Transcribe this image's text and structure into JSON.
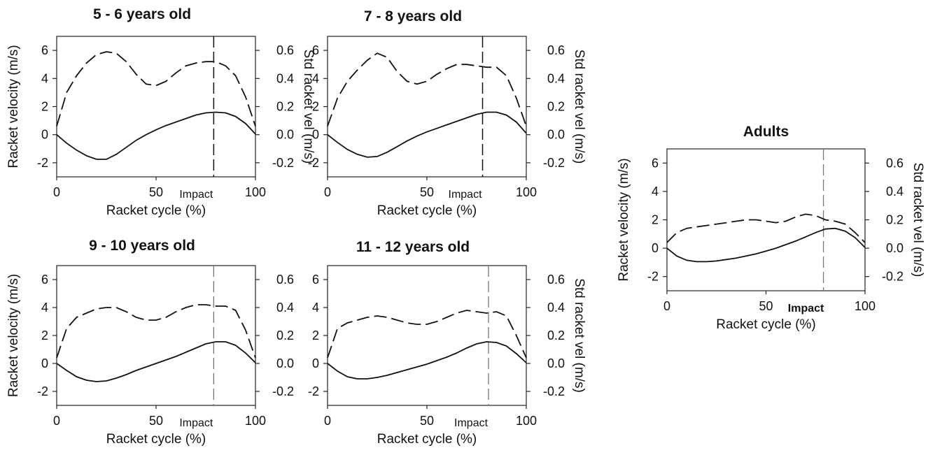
{
  "chart_data": [
    {
      "type": "line",
      "title": "5 - 6 years old",
      "xlabel": "Racket cycle (%)",
      "ylabel": "Racket velocity (m/s)",
      "ylabel_right": "Std racket vel (m/s)",
      "xlim": [
        0,
        100
      ],
      "ylim": [
        -3,
        7
      ],
      "ylim_right": [
        -0.3,
        0.7
      ],
      "x_ticks": [
        "0",
        "50",
        "100"
      ],
      "y_ticks": [
        "-2",
        "0",
        "2",
        "4",
        "6"
      ],
      "y_ticks_right": [
        "-0.2",
        "0.0",
        "0.2",
        "0.4",
        "0.6"
      ],
      "impact_label": "Impact",
      "impact_x": 79,
      "series": [
        {
          "style": "solid",
          "axis": "left",
          "x": [
            0,
            5,
            10,
            15,
            20,
            25,
            30,
            35,
            40,
            45,
            50,
            55,
            60,
            65,
            70,
            75,
            80,
            85,
            90,
            95,
            100
          ],
          "y": [
            0.0,
            -0.6,
            -1.1,
            -1.5,
            -1.75,
            -1.75,
            -1.4,
            -0.9,
            -0.4,
            0.0,
            0.35,
            0.65,
            0.9,
            1.15,
            1.4,
            1.55,
            1.6,
            1.55,
            1.3,
            0.8,
            0.05
          ]
        },
        {
          "style": "dashed",
          "axis": "right",
          "x": [
            0,
            5,
            10,
            15,
            20,
            25,
            30,
            35,
            40,
            45,
            50,
            55,
            60,
            65,
            70,
            75,
            80,
            85,
            90,
            95,
            100
          ],
          "y": [
            0.06,
            0.3,
            0.42,
            0.51,
            0.57,
            0.59,
            0.58,
            0.52,
            0.43,
            0.36,
            0.35,
            0.38,
            0.44,
            0.49,
            0.51,
            0.52,
            0.52,
            0.49,
            0.42,
            0.27,
            0.06
          ]
        }
      ]
    },
    {
      "type": "line",
      "title": "7 - 8 years old",
      "xlabel": "Racket cycle (%)",
      "ylabel": "",
      "ylabel_right": "Std racket vel (m/s)",
      "xlim": [
        0,
        100
      ],
      "ylim": [
        -3,
        7
      ],
      "ylim_right": [
        -0.3,
        0.7
      ],
      "x_ticks": [
        "0",
        "50",
        "100"
      ],
      "y_ticks": [
        "-2",
        "0",
        "2",
        "4",
        "6"
      ],
      "y_ticks_right": [
        "-0.2",
        "0.0",
        "0.2",
        "0.4",
        "0.6"
      ],
      "impact_label": "Impact",
      "impact_x": 78,
      "series": [
        {
          "style": "solid",
          "axis": "left",
          "x": [
            0,
            5,
            10,
            15,
            20,
            25,
            30,
            35,
            40,
            45,
            50,
            55,
            60,
            65,
            70,
            75,
            80,
            85,
            90,
            95,
            100
          ],
          "y": [
            0.0,
            -0.55,
            -1.05,
            -1.4,
            -1.6,
            -1.55,
            -1.25,
            -0.85,
            -0.45,
            -0.1,
            0.2,
            0.45,
            0.7,
            0.95,
            1.2,
            1.45,
            1.6,
            1.6,
            1.4,
            0.9,
            0.1
          ]
        },
        {
          "style": "dashed",
          "axis": "right",
          "x": [
            0,
            5,
            10,
            15,
            20,
            25,
            30,
            35,
            40,
            45,
            50,
            55,
            60,
            65,
            70,
            75,
            80,
            85,
            90,
            95,
            100
          ],
          "y": [
            0.06,
            0.26,
            0.38,
            0.46,
            0.53,
            0.58,
            0.55,
            0.45,
            0.38,
            0.36,
            0.38,
            0.43,
            0.47,
            0.5,
            0.5,
            0.49,
            0.48,
            0.48,
            0.42,
            0.26,
            0.06
          ]
        }
      ]
    },
    {
      "type": "line",
      "title": "9 - 10 years old",
      "xlabel": "Racket cycle (%)",
      "ylabel": "Racket velocity (m/s)",
      "ylabel_right": "",
      "xlim": [
        0,
        100
      ],
      "ylim": [
        -3,
        7
      ],
      "ylim_right": [
        -0.3,
        0.7
      ],
      "x_ticks": [
        "0",
        "50",
        "100"
      ],
      "y_ticks": [
        "-2",
        "0",
        "2",
        "4",
        "6"
      ],
      "y_ticks_right": [
        "-0.2",
        "0.0",
        "0.2",
        "0.4",
        "0.6"
      ],
      "impact_label": "Impact",
      "impact_x": 79,
      "series": [
        {
          "style": "solid",
          "axis": "left",
          "x": [
            0,
            5,
            10,
            15,
            20,
            25,
            30,
            35,
            40,
            45,
            50,
            55,
            60,
            65,
            70,
            75,
            80,
            85,
            90,
            95,
            100
          ],
          "y": [
            0.0,
            -0.5,
            -0.95,
            -1.2,
            -1.3,
            -1.25,
            -1.05,
            -0.8,
            -0.5,
            -0.25,
            0.0,
            0.25,
            0.5,
            0.8,
            1.1,
            1.4,
            1.55,
            1.55,
            1.3,
            0.75,
            0.05
          ]
        },
        {
          "style": "dashed",
          "axis": "right",
          "x": [
            0,
            5,
            10,
            15,
            20,
            25,
            30,
            35,
            40,
            45,
            50,
            55,
            60,
            65,
            70,
            75,
            80,
            85,
            90,
            95,
            100
          ],
          "y": [
            0.04,
            0.25,
            0.33,
            0.36,
            0.39,
            0.4,
            0.4,
            0.37,
            0.33,
            0.31,
            0.31,
            0.33,
            0.37,
            0.4,
            0.42,
            0.42,
            0.41,
            0.41,
            0.38,
            0.24,
            0.04
          ]
        }
      ]
    },
    {
      "type": "line",
      "title": "11 - 12 years old",
      "xlabel": "Racket cycle (%)",
      "ylabel": "",
      "ylabel_right": "Std racket vel (m/s)",
      "xlim": [
        0,
        100
      ],
      "ylim": [
        -3,
        7
      ],
      "ylim_right": [
        -0.3,
        0.7
      ],
      "x_ticks": [
        "0",
        "50",
        "100"
      ],
      "y_ticks": [
        "-2",
        "0",
        "2",
        "4",
        "6"
      ],
      "y_ticks_right": [
        "-0.2",
        "0.0",
        "0.2",
        "0.4",
        "0.6"
      ],
      "impact_label": "Impact",
      "impact_x": 81,
      "series": [
        {
          "style": "solid",
          "axis": "left",
          "x": [
            0,
            5,
            10,
            15,
            20,
            25,
            30,
            35,
            40,
            45,
            50,
            55,
            60,
            65,
            70,
            75,
            80,
            85,
            90,
            95,
            100
          ],
          "y": [
            0.0,
            -0.55,
            -0.95,
            -1.1,
            -1.1,
            -1.0,
            -0.85,
            -0.65,
            -0.45,
            -0.25,
            -0.05,
            0.2,
            0.45,
            0.75,
            1.1,
            1.4,
            1.55,
            1.5,
            1.25,
            0.7,
            0.05
          ]
        },
        {
          "style": "dashed",
          "axis": "right",
          "x": [
            0,
            5,
            10,
            15,
            20,
            25,
            30,
            35,
            40,
            45,
            50,
            55,
            60,
            65,
            70,
            75,
            80,
            85,
            90,
            95,
            100
          ],
          "y": [
            0.04,
            0.25,
            0.29,
            0.31,
            0.33,
            0.34,
            0.33,
            0.31,
            0.29,
            0.28,
            0.28,
            0.3,
            0.33,
            0.36,
            0.38,
            0.37,
            0.36,
            0.37,
            0.34,
            0.2,
            0.04
          ]
        }
      ]
    },
    {
      "type": "line",
      "title": "Adults",
      "xlabel": "Racket cycle (%)",
      "ylabel": "Racket velocity (m/s)",
      "ylabel_right": "Std racket vel (m/s)",
      "xlim": [
        0,
        100
      ],
      "ylim": [
        -3,
        7
      ],
      "ylim_right": [
        -0.3,
        0.7
      ],
      "x_ticks": [
        "0",
        "50",
        "100"
      ],
      "y_ticks": [
        "-2",
        "0",
        "2",
        "4",
        "6"
      ],
      "y_ticks_right": [
        "-0.2",
        "0.0",
        "0.2",
        "0.4",
        "0.6"
      ],
      "impact_label": "Impact",
      "impact_x": 79,
      "series": [
        {
          "style": "solid",
          "axis": "left",
          "x": [
            0,
            5,
            10,
            15,
            20,
            25,
            30,
            35,
            40,
            45,
            50,
            55,
            60,
            65,
            70,
            75,
            80,
            85,
            90,
            95,
            100
          ],
          "y": [
            0.0,
            -0.55,
            -0.85,
            -0.95,
            -0.95,
            -0.9,
            -0.8,
            -0.7,
            -0.55,
            -0.4,
            -0.2,
            0.0,
            0.25,
            0.5,
            0.8,
            1.1,
            1.35,
            1.4,
            1.2,
            0.75,
            0.05
          ]
        },
        {
          "style": "dashed",
          "axis": "right",
          "x": [
            0,
            5,
            10,
            15,
            20,
            25,
            30,
            35,
            40,
            45,
            50,
            55,
            60,
            65,
            70,
            75,
            80,
            85,
            90,
            95,
            100
          ],
          "y": [
            0.04,
            0.11,
            0.14,
            0.15,
            0.16,
            0.17,
            0.18,
            0.19,
            0.2,
            0.2,
            0.19,
            0.18,
            0.19,
            0.22,
            0.24,
            0.23,
            0.2,
            0.19,
            0.17,
            0.11,
            0.04
          ]
        }
      ]
    }
  ]
}
